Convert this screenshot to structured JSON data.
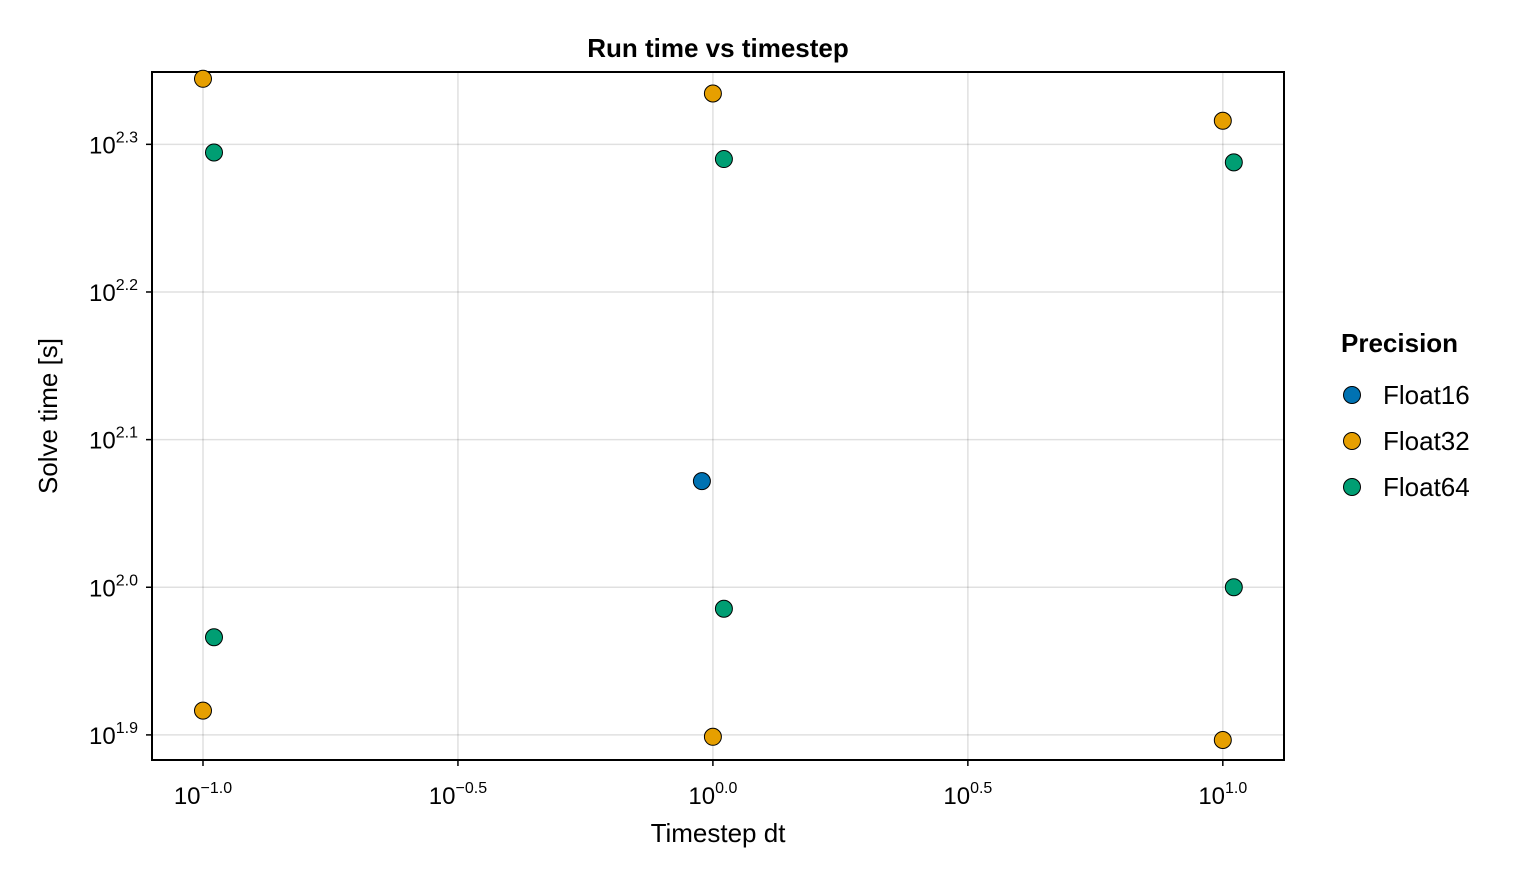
{
  "chart_data": {
    "type": "scatter",
    "title": "Run time vs timestep",
    "xlabel": "Timestep dt",
    "ylabel": "Solve time [s]",
    "xscale": "log10",
    "yscale": "log10",
    "xlim_log10": [
      -1.1,
      1.12
    ],
    "ylim_log10": [
      1.883,
      2.349
    ],
    "grid": true,
    "x_ticks": [
      {
        "exp": -1.0,
        "base": "10",
        "label": "−1.0"
      },
      {
        "exp": -0.5,
        "base": "10",
        "label": "−0.5"
      },
      {
        "exp": 0.0,
        "base": "10",
        "label": "0.0"
      },
      {
        "exp": 0.5,
        "base": "10",
        "label": "0.5"
      },
      {
        "exp": 1.0,
        "base": "10",
        "label": "1.0"
      }
    ],
    "y_ticks": [
      {
        "exp": 1.9,
        "base": "10",
        "label": "1.9"
      },
      {
        "exp": 2.0,
        "base": "10",
        "label": "2.0"
      },
      {
        "exp": 2.1,
        "base": "10",
        "label": "2.1"
      },
      {
        "exp": 2.2,
        "base": "10",
        "label": "2.2"
      },
      {
        "exp": 2.3,
        "base": "10",
        "label": "2.3"
      }
    ],
    "legend": {
      "title": "Precision",
      "position": "right"
    },
    "series": [
      {
        "name": "Float16",
        "color": "#0072b2",
        "points": [
          {
            "x": 1.0,
            "dodge": -1,
            "y": 118.0
          }
        ]
      },
      {
        "name": "Float32",
        "color": "#e69f00",
        "points": [
          {
            "x": 0.1,
            "dodge": 0,
            "y": 221.0
          },
          {
            "x": 0.1,
            "dodge": 0,
            "y": 82.5
          },
          {
            "x": 1.0,
            "dodge": 0,
            "y": 216.0
          },
          {
            "x": 1.0,
            "dodge": 0,
            "y": 79.2
          },
          {
            "x": 10.0,
            "dodge": 0,
            "y": 207.0
          },
          {
            "x": 10.0,
            "dodge": 0,
            "y": 78.8
          }
        ]
      },
      {
        "name": "Float64",
        "color": "#009e73",
        "points": [
          {
            "x": 0.1,
            "dodge": 1,
            "y": 197.0
          },
          {
            "x": 0.1,
            "dodge": 1,
            "y": 92.5
          },
          {
            "x": 1.0,
            "dodge": 1,
            "y": 195.0
          },
          {
            "x": 1.0,
            "dodge": 1,
            "y": 96.7
          },
          {
            "x": 10.0,
            "dodge": 1,
            "y": 194.0
          },
          {
            "x": 10.0,
            "dodge": 1,
            "y": 100.0
          }
        ]
      }
    ]
  }
}
